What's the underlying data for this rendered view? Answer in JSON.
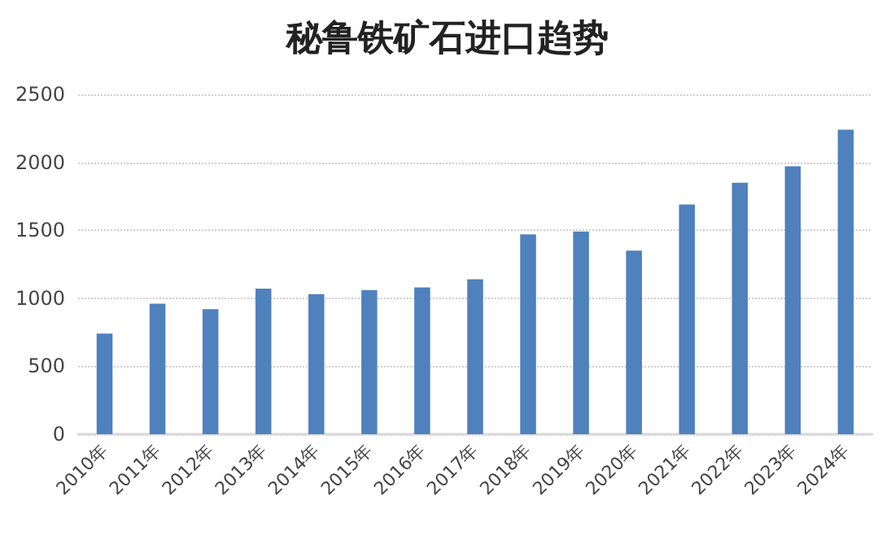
{
  "chart_data": {
    "type": "bar",
    "title": "秘鲁铁矿石进口趋势",
    "categories": [
      "2010年",
      "2011年",
      "2012年",
      "2013年",
      "2014年",
      "2015年",
      "2016年",
      "2017年",
      "2018年",
      "2019年",
      "2020年",
      "2021年",
      "2022年",
      "2023年",
      "2024年"
    ],
    "values": [
      740,
      960,
      920,
      1070,
      1030,
      1060,
      1080,
      1140,
      1470,
      1490,
      1350,
      1690,
      1850,
      1970,
      2240
    ],
    "color": "#4f81bd",
    "ylim": [
      0,
      2500
    ],
    "yticks": [
      0,
      500,
      1000,
      1500,
      2000,
      2500
    ],
    "grid": "y"
  }
}
